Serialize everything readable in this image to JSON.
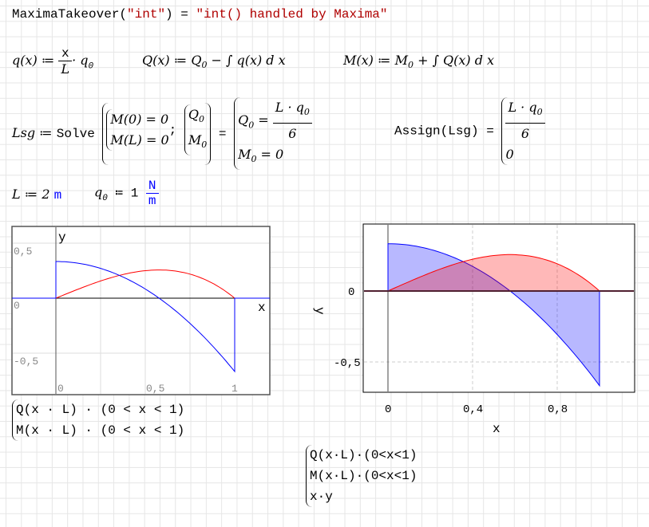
{
  "takeover": {
    "fn": "MaximaTakeover",
    "arg": "\"int\"",
    "result": "\"int() handled by Maxima\""
  },
  "defs": {
    "q": "q(x) ≔ ",
    "q_num": "x",
    "q_den": "L",
    "q_tail": "· q",
    "Q": "Q(x) ≔ Q",
    "Q_tail": " − ∫ q(x) d x",
    "M": "M(x) ≔ M",
    "M_tail": " + ∫ Q(x) d x"
  },
  "solve": {
    "lhs": "Lsg ≔ ",
    "fn": "Solve",
    "eq1": "M(0) = 0",
    "eq2": "M(L) = 0",
    "var1": "Q",
    "var2": "M",
    "res1_lhs": "Q",
    "res1_num": "L · q",
    "res1_den": "6",
    "res2": "M",
    "res2_val": " = 0",
    "assign": "Assign(Lsg) =",
    "assign_num": "L · q",
    "assign_den": "6",
    "assign_zero": "0"
  },
  "params": {
    "L_label": "L ≔ 2 ",
    "L_unit": "m",
    "q0_label": "q",
    "q0_val": " ≔ 1 ",
    "q0_unit_num": "N",
    "q0_unit_den": "m"
  },
  "plot1": {
    "xlabel": "x",
    "ylabel": "y",
    "yticks": [
      "0,5",
      "0",
      "-0,5"
    ],
    "xticks": [
      "0",
      "0,5",
      "1"
    ],
    "legend1": "Q(x · L) · (0 < x < 1)",
    "legend2": "M(x · L) · (0 < x < 1)"
  },
  "plot2": {
    "xlabel": "x",
    "ylabel": "y",
    "yticks": [
      "0",
      "-0,5"
    ],
    "xticks": [
      "0",
      "0,4",
      "0,8"
    ],
    "legend1": "Q(x·L)·(0<x<1)",
    "legend2": "M(x·L)·(0<x<1)",
    "legend3": "x·y"
  },
  "chart_data": [
    {
      "type": "line",
      "series": [
        {
          "expr": "Q(x·L)·(0<x<1)",
          "color": "#0000ff",
          "x": [
            0,
            0.2,
            0.4,
            0.6,
            0.8,
            1
          ],
          "y": [
            0.333,
            0.293,
            0.173,
            -0.027,
            -0.307,
            -0.667
          ]
        },
        {
          "expr": "M(x·L)·(0<x<1)",
          "color": "#ff0000",
          "x": [
            0,
            0.2,
            0.4,
            0.6,
            0.8,
            1
          ],
          "y": [
            0,
            0.128,
            0.224,
            0.256,
            0.192,
            0
          ]
        }
      ],
      "xlim": [
        -0.25,
        1.19
      ],
      "ylim": [
        -0.88,
        0.65
      ],
      "grid": true
    },
    {
      "type": "area",
      "series": [
        {
          "expr": "Q(x·L)·(0<x<1)",
          "color": "#0000ff",
          "fill": "#b8b8ff"
        },
        {
          "expr": "M(x·L)·(0<x<1)",
          "color": "#ff0000",
          "fill": "#ffb8b8"
        }
      ],
      "xlim": [
        -0.12,
        1.17
      ],
      "ylim": [
        -0.72,
        0.47
      ],
      "grid": true
    }
  ]
}
